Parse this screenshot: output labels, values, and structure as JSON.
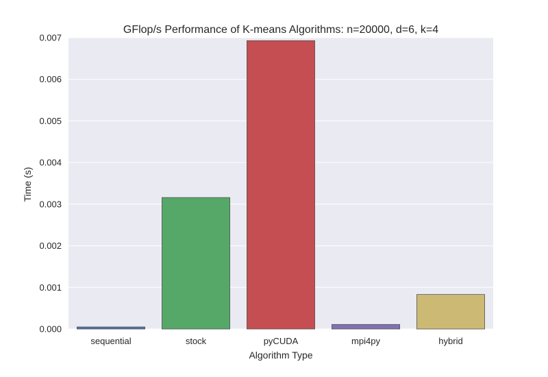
{
  "chart_data": {
    "type": "bar",
    "title": "GFlop/s Performance of K-means Algorithms: n=20000, d=6, k=4",
    "xlabel": "Algorithm Type",
    "ylabel": "Time (s)",
    "categories": [
      "sequential",
      "stock",
      "pyCUDA",
      "mpi4py",
      "hybrid"
    ],
    "values": [
      5e-05,
      0.00316,
      0.00693,
      0.00011,
      0.00083
    ],
    "colors": [
      "#4c72b0",
      "#55a868",
      "#c44e52",
      "#8172b2",
      "#ccb974"
    ],
    "ylim": [
      0,
      0.007
    ],
    "yticks": [
      "0.000",
      "0.001",
      "0.002",
      "0.003",
      "0.004",
      "0.005",
      "0.006",
      "0.007"
    ],
    "ytick_values": [
      0,
      0.001,
      0.002,
      0.003,
      0.004,
      0.005,
      0.006,
      0.007
    ],
    "grid": true,
    "background": "#eaeaf2"
  }
}
